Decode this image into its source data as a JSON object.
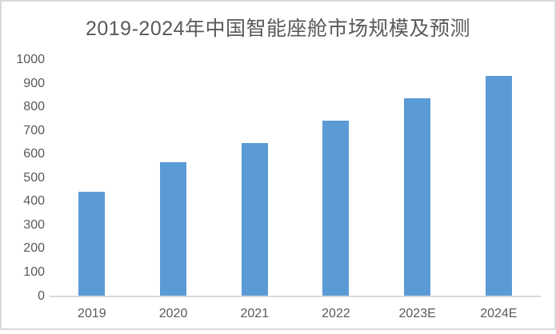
{
  "chart_data": {
    "type": "bar",
    "title": "2019-2024年中国智能座舱市场规模及预测",
    "categories": [
      "2019",
      "2020",
      "2021",
      "2022",
      "2023E",
      "2024E"
    ],
    "values": [
      440,
      565,
      645,
      740,
      835,
      930
    ],
    "xlabel": "",
    "ylabel": "",
    "ylim": [
      0,
      1000
    ],
    "ytick_step": 100,
    "yticks": [
      0,
      100,
      200,
      300,
      400,
      500,
      600,
      700,
      800,
      900,
      1000
    ],
    "grid": false,
    "legend": false,
    "colors": {
      "bar": "#5b9bd5",
      "axis_line": "#d9d9d9",
      "tick_label": "#595959",
      "title": "#595959",
      "frame_border": "#d9d9d9",
      "background": "#ffffff"
    }
  }
}
